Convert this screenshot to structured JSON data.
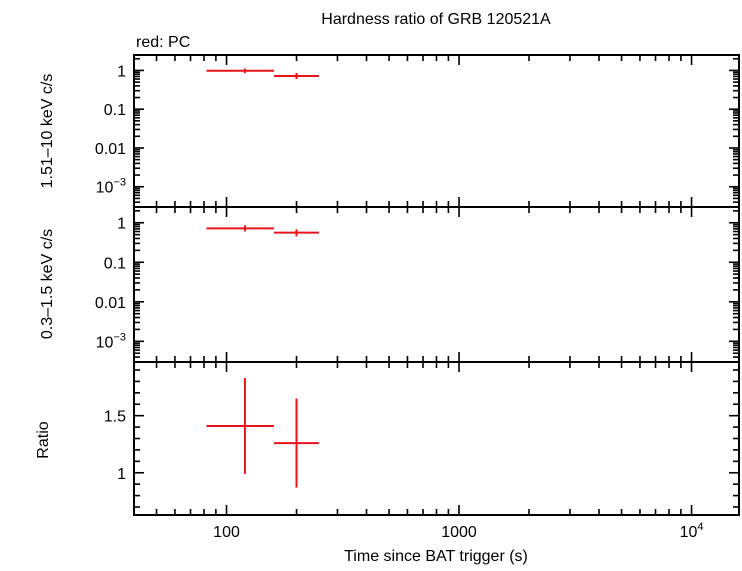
{
  "chart_data": {
    "type": "scatter",
    "title": "Hardness ratio of GRB 120521A",
    "subtitle": "red: PC",
    "xlabel": "Time since BAT trigger (s)",
    "xscale": "log",
    "xlim": [
      40,
      16000
    ],
    "xticks": [
      {
        "value": 100,
        "label": "100"
      },
      {
        "value": 1000,
        "label": "1000"
      },
      {
        "value": 10000,
        "label": "10",
        "exponent": "4"
      }
    ],
    "series_color": "#e8141a",
    "panels": [
      {
        "id": "hard",
        "ylabel": "1.51–10 keV c/s",
        "yscale": "log",
        "ylim": [
          0.0003,
          2.5
        ],
        "yticks": [
          {
            "value": 1,
            "label": "1"
          },
          {
            "value": 0.1,
            "label": "0.1"
          },
          {
            "value": 0.01,
            "label": "0.01"
          },
          {
            "value": 0.001,
            "label": "10",
            "exponent": "−3"
          }
        ],
        "points": [
          {
            "x": 120,
            "xlo": 82,
            "xhi": 160,
            "y": 0.98,
            "ylo": 0.85,
            "yhi": 1.12
          },
          {
            "x": 200,
            "xlo": 160,
            "xhi": 250,
            "y": 0.72,
            "ylo": 0.6,
            "yhi": 0.86
          }
        ]
      },
      {
        "id": "soft",
        "ylabel": "0.3–1.5 keV c/s",
        "yscale": "log",
        "ylim": [
          0.0003,
          2.5
        ],
        "yticks": [
          {
            "value": 1,
            "label": "1"
          },
          {
            "value": 0.1,
            "label": "0.1"
          },
          {
            "value": 0.01,
            "label": "0.01"
          },
          {
            "value": 0.001,
            "label": "10",
            "exponent": "−3"
          }
        ],
        "points": [
          {
            "x": 120,
            "xlo": 82,
            "xhi": 160,
            "y": 0.72,
            "ylo": 0.6,
            "yhi": 0.86
          },
          {
            "x": 200,
            "xlo": 160,
            "xhi": 250,
            "y": 0.56,
            "ylo": 0.45,
            "yhi": 0.68
          }
        ]
      },
      {
        "id": "ratio",
        "ylabel": "Ratio",
        "yscale": "linear",
        "ylim": [
          0.63,
          1.97
        ],
        "yticks": [
          {
            "value": 1.5,
            "label": "1.5"
          },
          {
            "value": 1,
            "label": "1"
          }
        ],
        "points": [
          {
            "x": 120,
            "xlo": 82,
            "xhi": 160,
            "y": 1.41,
            "ylo": 0.99,
            "yhi": 1.83
          },
          {
            "x": 200,
            "xlo": 160,
            "xhi": 250,
            "y": 1.26,
            "ylo": 0.87,
            "yhi": 1.65
          }
        ]
      }
    ]
  }
}
